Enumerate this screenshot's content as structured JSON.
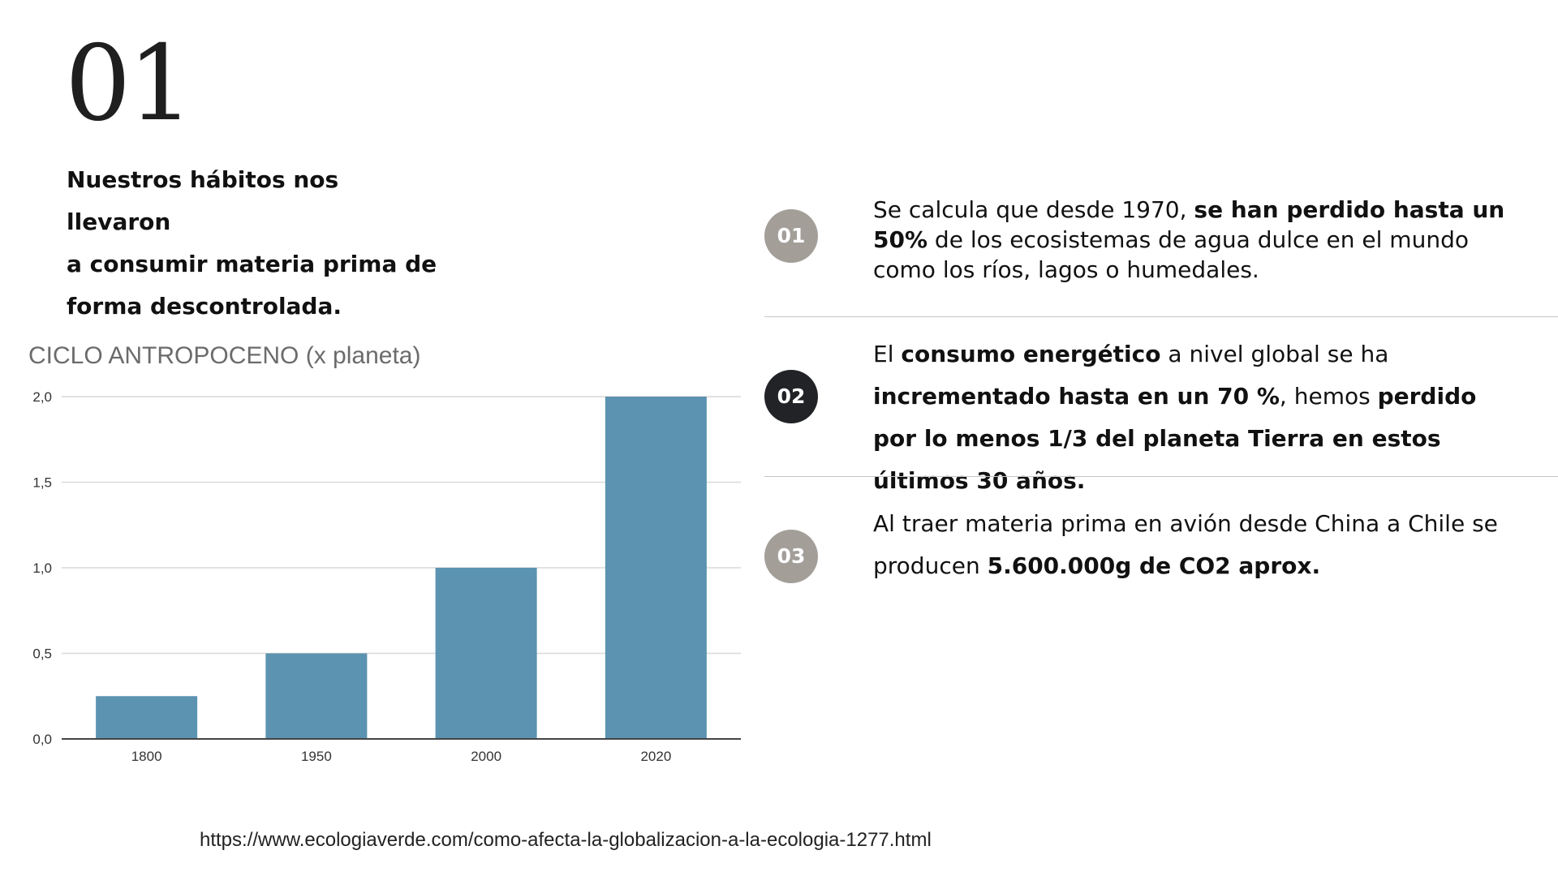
{
  "slide": {
    "number": "01",
    "intro_lines": [
      "Nuestros hábitos nos llevaron",
      "a consumir materia prima de",
      "forma descontrolada."
    ]
  },
  "colors": {
    "bar": "#5b93b1",
    "badge_gray": "#a39e98",
    "badge_dark": "#222326",
    "grid": "#d9d9d9",
    "axis": "#444444"
  },
  "points": [
    {
      "badge": "01",
      "badge_style": "gray",
      "segments": [
        {
          "text": "Se calcula que desde 1970, ",
          "bold": false
        },
        {
          "text": "se han perdido hasta un 50%",
          "bold": true
        },
        {
          "text": " de los ecosistemas de agua dulce en el mundo como los ríos, lagos o humedales.",
          "bold": false
        }
      ]
    },
    {
      "badge": "02",
      "badge_style": "dark",
      "segments": [
        {
          "text": "El ",
          "bold": false
        },
        {
          "text": "consumo energético",
          "bold": true
        },
        {
          "text": " a nivel global se ha ",
          "bold": false
        },
        {
          "text": "incrementado hasta en un 70 %",
          "bold": true
        },
        {
          "text": ", hemos ",
          "bold": false
        },
        {
          "text": "perdido por lo menos 1/3 del planeta Tierra en estos últimos 30 años.",
          "bold": true
        }
      ]
    },
    {
      "badge": "03",
      "badge_style": "gray",
      "segments": [
        {
          "text": "Al traer materia prima en avión desde China a Chile se producen ",
          "bold": false
        },
        {
          "text": "5.600.000g de CO2 aprox.",
          "bold": true
        }
      ]
    }
  ],
  "chart_data": {
    "type": "bar",
    "title": "CICLO ANTROPOCENO (x planeta)",
    "categories": [
      "1800",
      "1950",
      "2000",
      "2020"
    ],
    "values": [
      0.25,
      0.5,
      1.0,
      2.0
    ],
    "ylim": [
      0,
      2
    ],
    "yticks": [
      "0,0",
      "0,5",
      "1,0",
      "1,5",
      "2,0"
    ],
    "ytick_values": [
      0,
      0.5,
      1.0,
      1.5,
      2.0
    ],
    "grid": true,
    "legend": "none",
    "xlabel": "",
    "ylabel": ""
  },
  "source": "https://www.ecologiaverde.com/como-afecta-la-globalizacion-a-la-ecologia-1277.html"
}
